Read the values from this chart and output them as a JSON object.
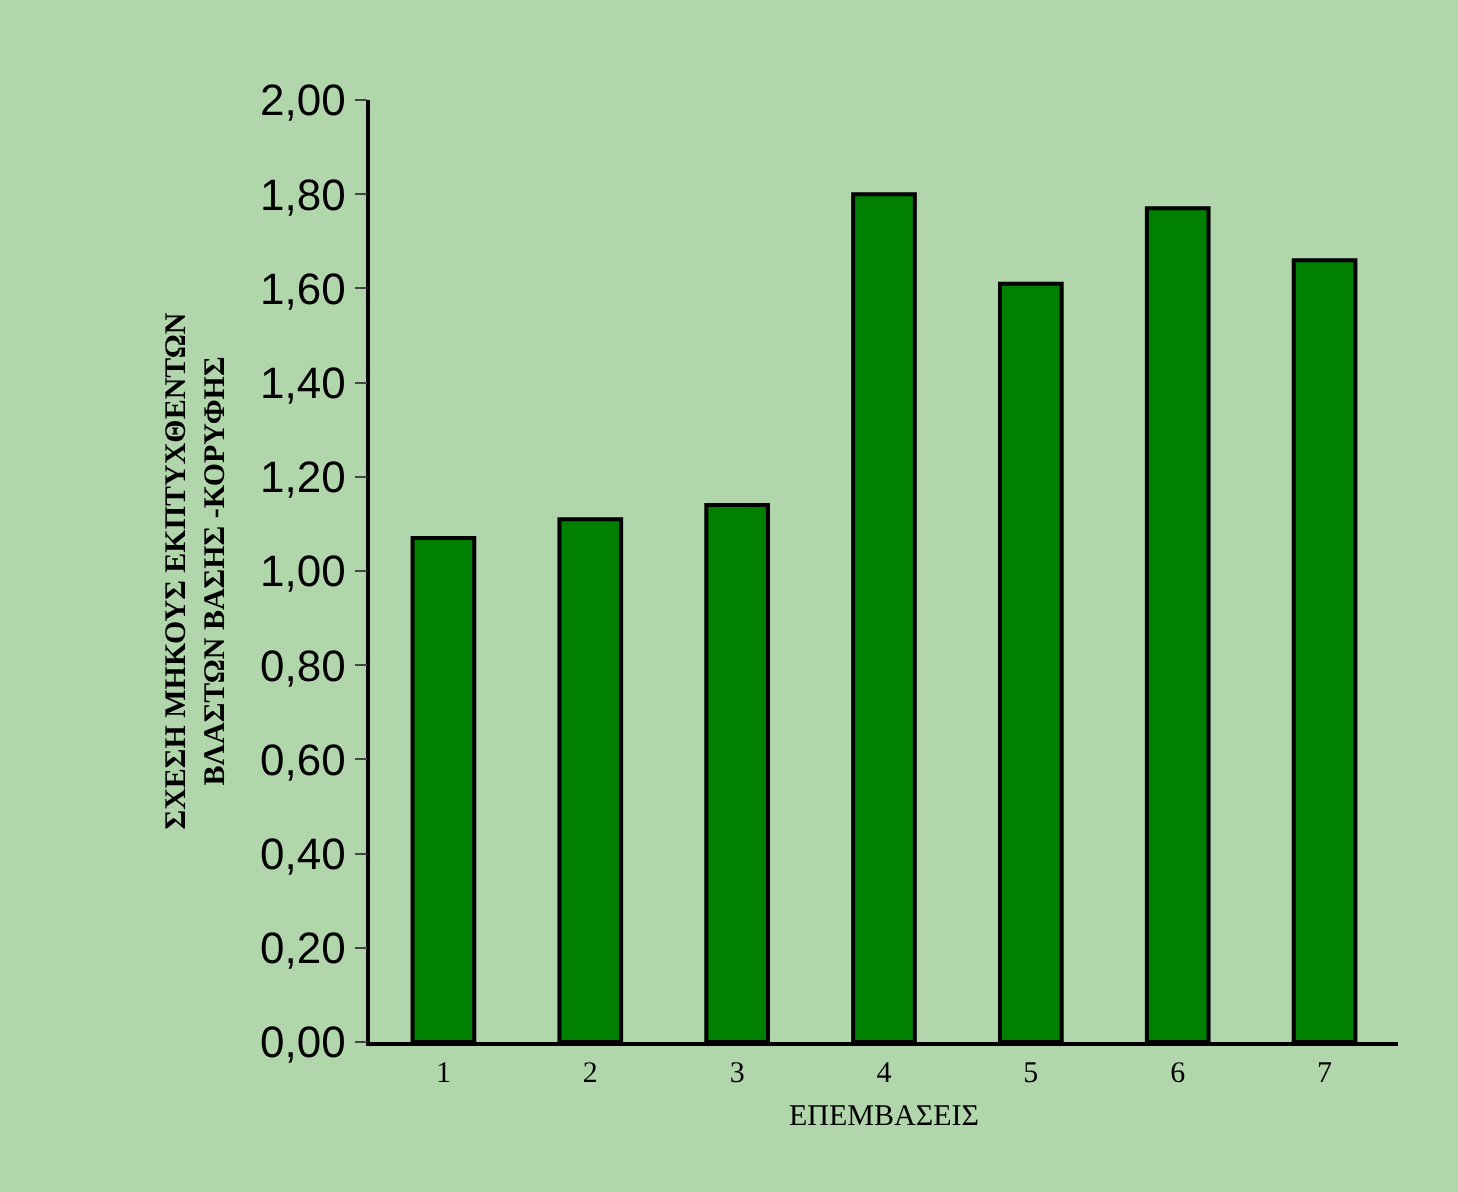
{
  "chart_data": {
    "type": "bar",
    "xlabel": "ΕΠΕΜΒΑΣΕΙΣ",
    "ylabel": "ΣΧΕΣΗ ΜΗΚΟΥΣ ΕΚΠΤΥΧΘΕΝΤΩΝ\nΒΛΑΣΤΩΝ ΒΑΣΗΣ -ΚΟΡΥΦΗΣ",
    "categories": [
      "1",
      "2",
      "3",
      "4",
      "5",
      "6",
      "7"
    ],
    "values": [
      1.07,
      1.11,
      1.14,
      1.8,
      1.61,
      1.77,
      1.66
    ],
    "color": "#008000",
    "ylim": [
      0,
      2
    ],
    "yticks": [
      {
        "value": 0,
        "label": "0,00"
      },
      {
        "value": 0.2,
        "label": "0,20"
      },
      {
        "value": 0.4,
        "label": "0,40"
      },
      {
        "value": 0.6,
        "label": "0,60"
      },
      {
        "value": 0.8,
        "label": "0,80"
      },
      {
        "value": 1.0,
        "label": "1,00"
      },
      {
        "value": 1.2,
        "label": "1,20"
      },
      {
        "value": 1.4,
        "label": "1,40"
      },
      {
        "value": 1.6,
        "label": "1,60"
      },
      {
        "value": 1.8,
        "label": "1,80"
      },
      {
        "value": 2.0,
        "label": "2,00"
      }
    ]
  }
}
